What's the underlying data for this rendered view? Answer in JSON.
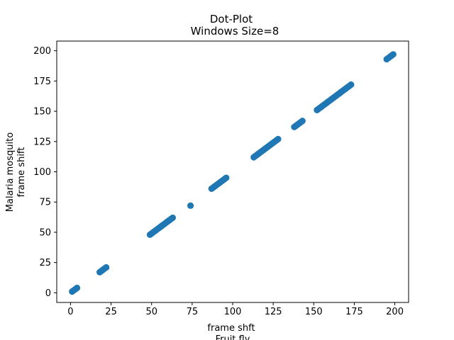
{
  "chart_data": {
    "type": "scatter",
    "title": "Dot-Plot",
    "subtitle": "Windows Size=8",
    "xlabel": [
      "frame shft",
      "Fruit fly"
    ],
    "ylabel": [
      "Malaria mosquito",
      "frame shift"
    ],
    "xlim": [
      -8.5,
      208.5
    ],
    "ylim": [
      -8,
      208
    ],
    "xticks": [
      0,
      25,
      50,
      75,
      100,
      125,
      150,
      175,
      200
    ],
    "yticks": [
      0,
      25,
      50,
      75,
      100,
      125,
      150,
      175,
      200
    ],
    "grid": false,
    "marker_color": "#1f77b4",
    "series": [
      {
        "x": [
          1,
          2,
          3,
          4,
          18,
          19,
          20,
          21,
          22,
          49,
          50,
          51,
          52,
          53,
          54,
          55,
          56,
          57,
          58,
          59,
          60,
          61,
          62,
          63,
          74,
          87,
          88,
          89,
          90,
          91,
          92,
          93,
          94,
          95,
          96,
          113,
          114,
          115,
          116,
          117,
          118,
          119,
          120,
          121,
          122,
          123,
          124,
          125,
          126,
          127,
          128,
          138,
          139,
          140,
          141,
          142,
          143,
          152,
          153,
          154,
          155,
          156,
          157,
          158,
          159,
          160,
          161,
          162,
          163,
          164,
          165,
          166,
          167,
          168,
          169,
          170,
          171,
          172,
          173,
          195,
          196,
          197,
          198,
          199
        ],
        "y": [
          1,
          2,
          3,
          4,
          17,
          18,
          19,
          20,
          21,
          48,
          49,
          50,
          51,
          52,
          53,
          54,
          55,
          56,
          57,
          58,
          59,
          60,
          61,
          62,
          72,
          86,
          87,
          88,
          89,
          90,
          91,
          92,
          93,
          94,
          95,
          112,
          113,
          114,
          115,
          116,
          117,
          118,
          119,
          120,
          121,
          122,
          123,
          124,
          125,
          126,
          127,
          137,
          138,
          139,
          140,
          141,
          142,
          151,
          152,
          153,
          154,
          155,
          156,
          157,
          158,
          159,
          160,
          161,
          162,
          163,
          164,
          165,
          166,
          167,
          168,
          169,
          170,
          171,
          172,
          193,
          194,
          195,
          196,
          197
        ]
      }
    ]
  }
}
